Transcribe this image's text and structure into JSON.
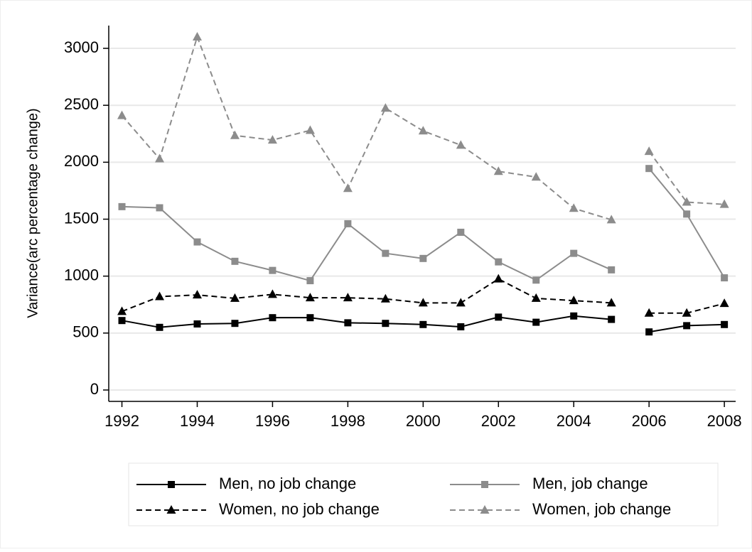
{
  "chart_data": {
    "type": "line",
    "ylabel": "Variance(arc percentage change)",
    "x": [
      1992,
      1993,
      1994,
      1995,
      1996,
      1997,
      1998,
      1999,
      2000,
      2001,
      2002,
      2003,
      2004,
      2005,
      null,
      2006,
      2007,
      2008
    ],
    "series": [
      {
        "name": "Men, no job change",
        "color": "#000000",
        "style": "solid",
        "marker": "square",
        "values": [
          610,
          550,
          580,
          585,
          635,
          635,
          590,
          585,
          575,
          555,
          640,
          595,
          650,
          620,
          null,
          510,
          565,
          575
        ]
      },
      {
        "name": "Men, job change",
        "color": "#8c8c8c",
        "style": "solid",
        "marker": "square",
        "values": [
          1610,
          1600,
          1300,
          1130,
          1050,
          960,
          1460,
          1200,
          1155,
          1385,
          1125,
          965,
          1200,
          1055,
          null,
          1945,
          1545,
          985
        ]
      },
      {
        "name": "Women, no job change",
        "color": "#000000",
        "style": "dashed",
        "marker": "triangle",
        "values": [
          690,
          820,
          835,
          805,
          840,
          810,
          810,
          800,
          765,
          765,
          975,
          805,
          785,
          765,
          null,
          675,
          675,
          760
        ]
      },
      {
        "name": "Women, job change",
        "color": "#8c8c8c",
        "style": "dashed",
        "marker": "triangle",
        "values": [
          2410,
          2030,
          3100,
          2235,
          2195,
          2280,
          1770,
          2475,
          2275,
          2150,
          1920,
          1870,
          1595,
          1495,
          null,
          2095,
          1650,
          1630
        ]
      }
    ],
    "xlim": [
      1991.65,
      2008.3
    ],
    "ylim": [
      -100,
      3200
    ],
    "xticks": [
      1992,
      1994,
      1996,
      1998,
      2000,
      2002,
      2004,
      2006,
      2008
    ],
    "yticks": [
      0,
      500,
      1000,
      1500,
      2000,
      2500,
      3000
    ],
    "grid": true,
    "legend": "bottom"
  }
}
